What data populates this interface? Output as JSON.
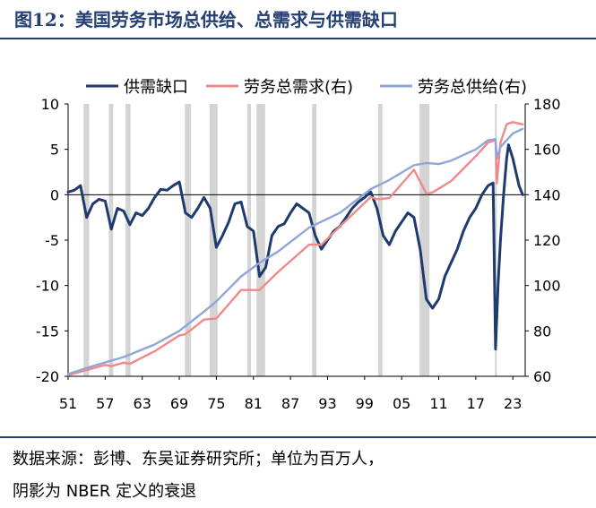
{
  "figure": {
    "title": "图12：美国劳务市场总供给、总需求与供需缺口",
    "source_line1": "数据来源：彭博、东吴证券研究所；单位为百万人，",
    "source_line2": "阴影为 NBER 定义的衰退"
  },
  "chart_data": {
    "type": "line",
    "x_ticks": [
      "51",
      "57",
      "63",
      "69",
      "75",
      "81",
      "87",
      "93",
      "99",
      "05",
      "11",
      "17",
      "23"
    ],
    "x_range": [
      1951,
      2025
    ],
    "y_left": {
      "range": [
        -20,
        10
      ],
      "ticks": [
        -20,
        -15,
        -10,
        -5,
        0,
        5,
        10
      ]
    },
    "y_right": {
      "range": [
        60,
        180
      ],
      "ticks": [
        60,
        80,
        100,
        120,
        140,
        160,
        180
      ]
    },
    "legend_position": "top",
    "recessions": [
      [
        1953.5,
        1954.4
      ],
      [
        1957.6,
        1958.3
      ],
      [
        1960.3,
        1961.1
      ],
      [
        1969.9,
        1970.9
      ],
      [
        1973.9,
        1975.2
      ],
      [
        1980.0,
        1980.6
      ],
      [
        1981.5,
        1982.9
      ],
      [
        1990.5,
        1991.2
      ],
      [
        2001.2,
        2001.9
      ],
      [
        2007.9,
        2009.5
      ],
      [
        2020.1,
        2020.4
      ]
    ],
    "series": [
      {
        "name": "供需缺口",
        "axis": "left",
        "color": "#1f3a6e",
        "points": [
          [
            1951,
            0.3
          ],
          [
            1952,
            0.5
          ],
          [
            1953,
            1.0
          ],
          [
            1954,
            -2.5
          ],
          [
            1955,
            -1.0
          ],
          [
            1956,
            -0.5
          ],
          [
            1957,
            -0.7
          ],
          [
            1958,
            -3.8
          ],
          [
            1959,
            -1.5
          ],
          [
            1960,
            -1.8
          ],
          [
            1961,
            -3.3
          ],
          [
            1962,
            -2.0
          ],
          [
            1963,
            -2.3
          ],
          [
            1964,
            -1.5
          ],
          [
            1965,
            -0.3
          ],
          [
            1966,
            0.6
          ],
          [
            1967,
            0.5
          ],
          [
            1968,
            1.0
          ],
          [
            1969,
            1.4
          ],
          [
            1970,
            -2.0
          ],
          [
            1971,
            -2.5
          ],
          [
            1972,
            -1.5
          ],
          [
            1973,
            -0.3
          ],
          [
            1974,
            -1.5
          ],
          [
            1975,
            -5.8
          ],
          [
            1976,
            -4.5
          ],
          [
            1977,
            -3.0
          ],
          [
            1978,
            -1.0
          ],
          [
            1979,
            -0.8
          ],
          [
            1980,
            -3.5
          ],
          [
            1981,
            -4.0
          ],
          [
            1982,
            -9.0
          ],
          [
            1983,
            -8.0
          ],
          [
            1984,
            -4.5
          ],
          [
            1985,
            -3.5
          ],
          [
            1986,
            -3.2
          ],
          [
            1987,
            -2.0
          ],
          [
            1988,
            -1.0
          ],
          [
            1989,
            -1.5
          ],
          [
            1990,
            -2.0
          ],
          [
            1991,
            -4.5
          ],
          [
            1992,
            -6.0
          ],
          [
            1993,
            -5.0
          ],
          [
            1994,
            -4.0
          ],
          [
            1995,
            -3.5
          ],
          [
            1996,
            -2.5
          ],
          [
            1997,
            -1.5
          ],
          [
            1998,
            -0.8
          ],
          [
            1999,
            -0.3
          ],
          [
            2000,
            0.3
          ],
          [
            2001,
            -1.5
          ],
          [
            2002,
            -4.5
          ],
          [
            2003,
            -5.5
          ],
          [
            2004,
            -4.0
          ],
          [
            2005,
            -3.0
          ],
          [
            2006,
            -2.0
          ],
          [
            2007,
            -2.5
          ],
          [
            2008,
            -6.0
          ],
          [
            2009,
            -11.5
          ],
          [
            2010,
            -12.5
          ],
          [
            2011,
            -11.5
          ],
          [
            2012,
            -9.0
          ],
          [
            2013,
            -7.5
          ],
          [
            2014,
            -6.0
          ],
          [
            2015,
            -4.0
          ],
          [
            2016,
            -2.5
          ],
          [
            2017,
            -1.5
          ],
          [
            2018,
            0.0
          ],
          [
            2019,
            1.0
          ],
          [
            2019.8,
            1.3
          ],
          [
            2020.2,
            -17.0
          ],
          [
            2020.6,
            -10.0
          ],
          [
            2021,
            -5.0
          ],
          [
            2021.5,
            0.0
          ],
          [
            2022,
            4.0
          ],
          [
            2022.3,
            5.5
          ],
          [
            2023,
            4.0
          ],
          [
            2024,
            1.0
          ],
          [
            2024.6,
            0.0
          ]
        ]
      },
      {
        "name": "劳务总需求(右)",
        "axis": "right",
        "color": "#f08a8a",
        "points": [
          [
            1951,
            60.5
          ],
          [
            1955,
            63.5
          ],
          [
            1957,
            65.0
          ],
          [
            1958,
            64.5
          ],
          [
            1960,
            66.0
          ],
          [
            1961,
            65.5
          ],
          [
            1965,
            71.0
          ],
          [
            1969,
            78.0
          ],
          [
            1970,
            78.5
          ],
          [
            1973,
            85.0
          ],
          [
            1975,
            85.5
          ],
          [
            1979,
            98.0
          ],
          [
            1980,
            98.0
          ],
          [
            1982,
            98.0
          ],
          [
            1985,
            106.0
          ],
          [
            1990,
            118.0
          ],
          [
            1992,
            118.0
          ],
          [
            1995,
            126.0
          ],
          [
            2000,
            139.0
          ],
          [
            2001,
            138.0
          ],
          [
            2003,
            138.5
          ],
          [
            2007,
            151.0
          ],
          [
            2009,
            140.5
          ],
          [
            2010,
            141.0
          ],
          [
            2013,
            146.0
          ],
          [
            2017,
            157.0
          ],
          [
            2019,
            163.0
          ],
          [
            2020.2,
            164.0
          ],
          [
            2020.4,
            145.0
          ],
          [
            2021,
            163.0
          ],
          [
            2022,
            171.0
          ],
          [
            2023,
            172.0
          ],
          [
            2024.6,
            171.0
          ]
        ]
      },
      {
        "name": "劳务总供给(右)",
        "axis": "right",
        "color": "#8ea7d8",
        "points": [
          [
            1951,
            61.0
          ],
          [
            1955,
            64.5
          ],
          [
            1960,
            68.5
          ],
          [
            1965,
            74.0
          ],
          [
            1969,
            80.0
          ],
          [
            1973,
            88.5
          ],
          [
            1975,
            93.0
          ],
          [
            1979,
            104.0
          ],
          [
            1982,
            110.0
          ],
          [
            1985,
            115.0
          ],
          [
            1990,
            125.5
          ],
          [
            1995,
            132.0
          ],
          [
            2000,
            142.5
          ],
          [
            2003,
            146.5
          ],
          [
            2007,
            153.0
          ],
          [
            2009,
            154.0
          ],
          [
            2011,
            153.5
          ],
          [
            2013,
            155.0
          ],
          [
            2017,
            160.0
          ],
          [
            2019,
            164.0
          ],
          [
            2020.2,
            164.5
          ],
          [
            2020.4,
            156.0
          ],
          [
            2021,
            161.0
          ],
          [
            2023,
            167.0
          ],
          [
            2024.6,
            169.0
          ]
        ]
      }
    ]
  }
}
